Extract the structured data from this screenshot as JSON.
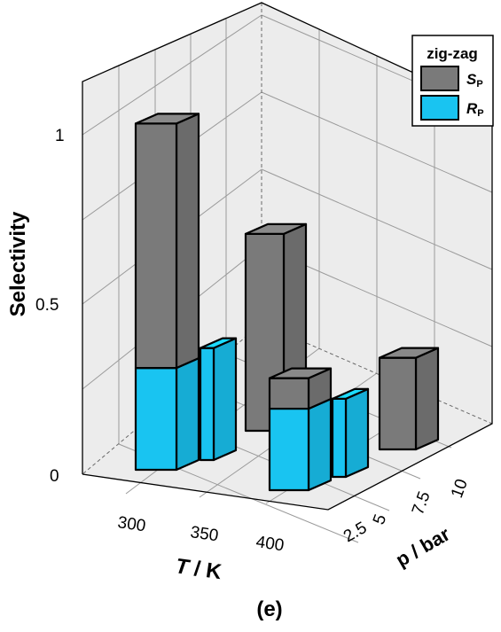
{
  "caption": "(e)",
  "legend": {
    "title": "zig-zag",
    "items": [
      {
        "symbol": "S",
        "subscript": "P",
        "color": "#7a7a7a"
      },
      {
        "symbol": "R",
        "subscript": "P",
        "color": "#19c4f1"
      }
    ]
  },
  "chart_data": {
    "type": "bar3d",
    "zlabel": "Selectivity",
    "xlabel_italic": "T",
    "xlabel_rest": " / K",
    "ylabel": "p / bar",
    "x_ticks": [
      "300",
      "350",
      "400"
    ],
    "y_ticks": [
      "2.5",
      "5",
      "7.5",
      "10"
    ],
    "z_ticks": [
      "0",
      "0.5",
      "1"
    ],
    "zlim": [
      0,
      1.2
    ],
    "colors": {
      "S_P": "#7a7a7a",
      "R_P": "#19c4f1"
    },
    "bars": [
      {
        "T": 300,
        "p": 2.5,
        "S_P": 1.02,
        "R_P": 0.3
      },
      {
        "T": 300,
        "p": 5,
        "R_P": 0.33
      },
      {
        "T": 350,
        "p": 5,
        "S_P": 0.58
      },
      {
        "T": 400,
        "p": 2.5,
        "S_P": 0.33,
        "R_P": 0.24
      },
      {
        "T": 400,
        "p": 5,
        "R_P": 0.23
      },
      {
        "T": 400,
        "p": 10,
        "S_P": 0.27
      }
    ]
  }
}
